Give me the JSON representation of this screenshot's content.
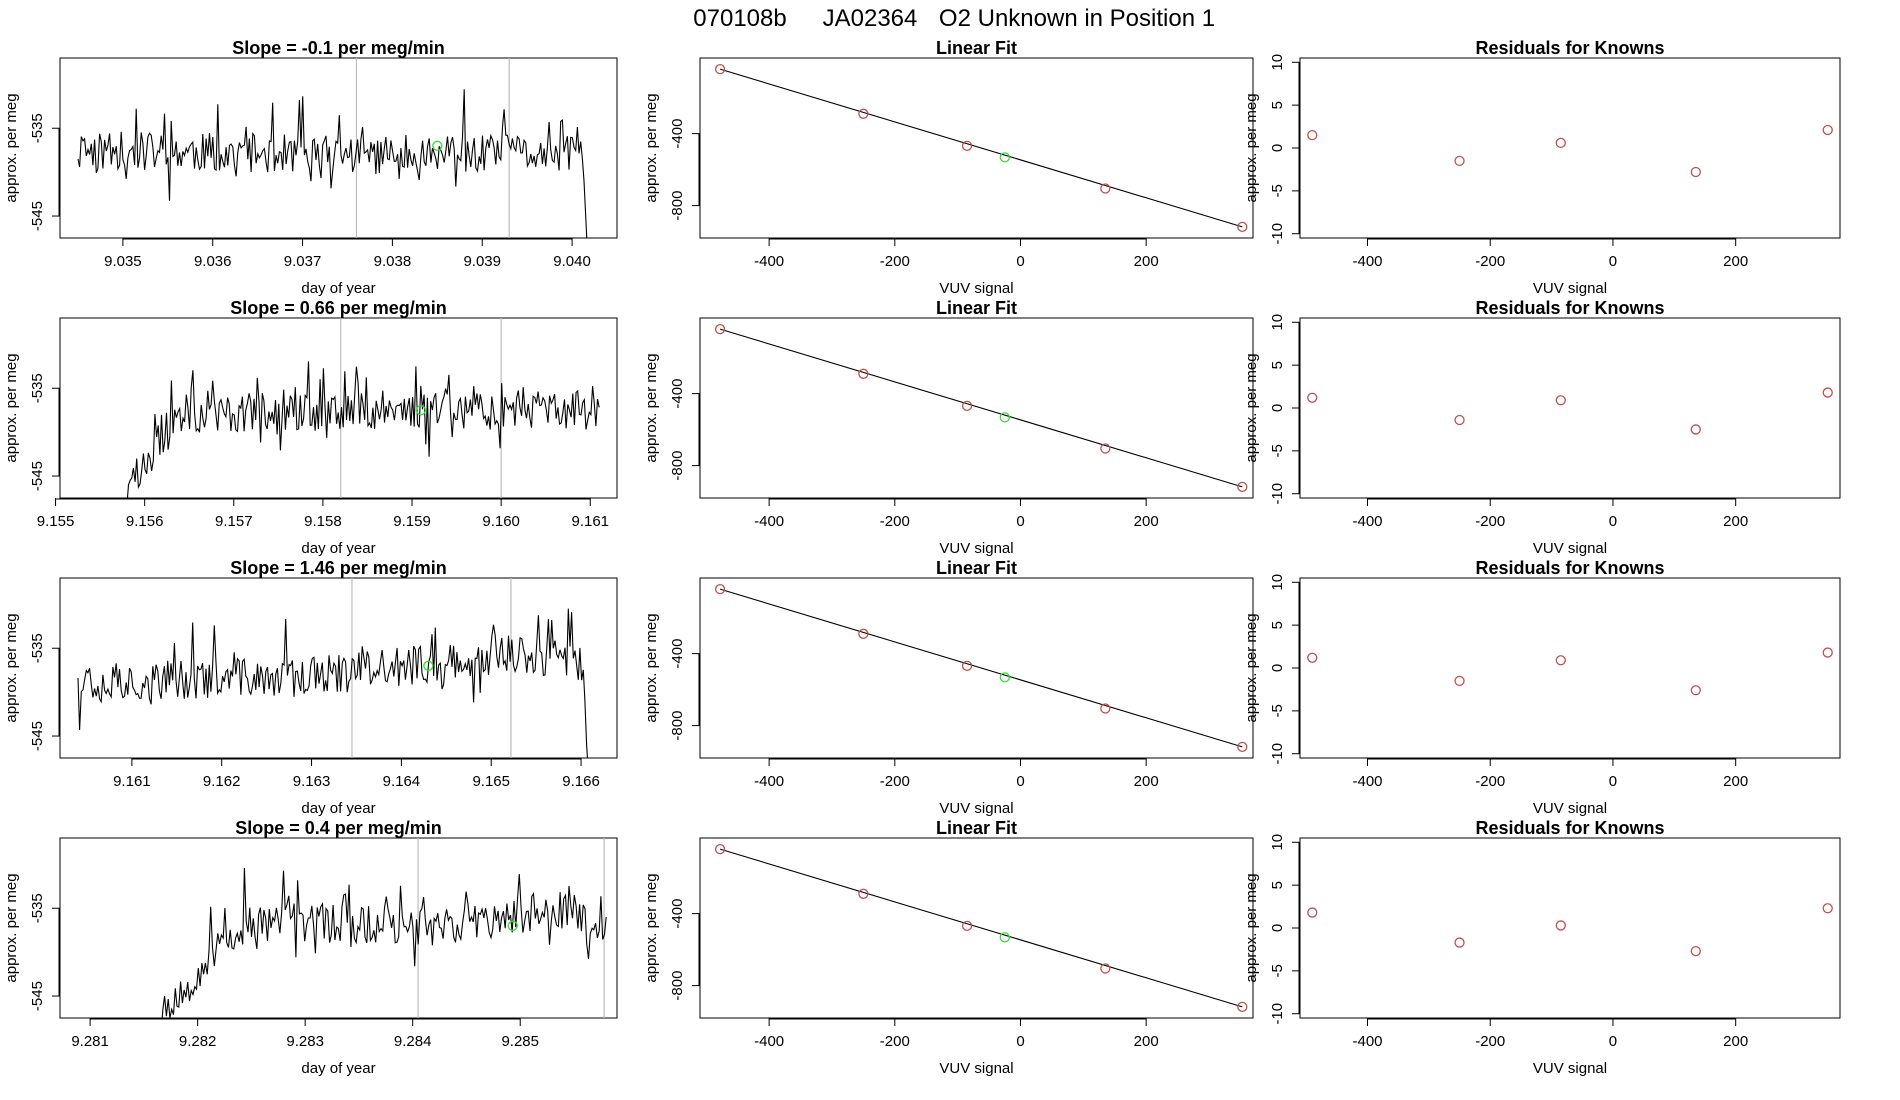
{
  "figure": {
    "title_run": "070108b",
    "title_id": "JA02364",
    "title_desc": "O2 Unknown in Position  1"
  },
  "colors": {
    "trace": "#000000",
    "frame": "#000000",
    "vline": "#bdbdbd",
    "known_point": "#c0504d",
    "unknown_point": "#33dd33"
  },
  "chart_data": [
    {
      "type": "line",
      "row": 1,
      "col": "time",
      "title": "Slope =  -0.1  per meg/min",
      "xlabel": "day of year",
      "ylabel": "approx. per meg",
      "xlim": [
        9.0343,
        9.0405
      ],
      "ylim": [
        -547.5,
        -527
      ],
      "xticks": [
        "9.035",
        "9.036",
        "9.037",
        "9.038",
        "9.039",
        "9.040"
      ],
      "yticks": [
        "-535",
        "-545"
      ],
      "vlines": [
        9.0376,
        9.0393
      ],
      "start_x": 9.0345,
      "end_x": 9.04017,
      "seed": 11,
      "levels": [
        [
          0,
          -537.5
        ],
        [
          0.5,
          -538
        ],
        [
          1,
          -538
        ]
      ],
      "tail": [
        -538.5,
        -541,
        -545,
        -549
      ],
      "green_point": [
        9.0385,
        -537
      ]
    },
    {
      "type": "line",
      "row": 1,
      "col": "fit",
      "title": "Linear Fit",
      "xlabel": "VUV signal",
      "ylabel": "approx. per meg",
      "xlim": [
        -510,
        370
      ],
      "ylim": [
        -980,
        20
      ],
      "xticks": [
        "-400",
        "-200",
        "0",
        "200"
      ],
      "yticks": [
        "-400",
        "-800"
      ],
      "fit_line": [
        [
          -478,
          -42
        ],
        [
          353,
          -918
        ]
      ],
      "points": [
        [
          -478,
          -42
        ],
        [
          -250,
          -290
        ],
        [
          -85,
          -468
        ],
        [
          -25,
          -532
        ],
        [
          135,
          -705
        ],
        [
          353,
          -918
        ]
      ],
      "unknown_index": 3
    },
    {
      "type": "scatter",
      "row": 1,
      "col": "residuals",
      "title": "Residuals for Knowns",
      "xlabel": "VUV signal",
      "ylabel": "approx. per meg",
      "xlim": [
        -510,
        370
      ],
      "ylim": [
        -10.5,
        10.5
      ],
      "xticks": [
        "-400",
        "-200",
        "0",
        "200"
      ],
      "yticks": [
        "-10",
        "-5",
        "0",
        "5",
        "10"
      ],
      "points": [
        [
          -490,
          1.5
        ],
        [
          -250,
          -1.5
        ],
        [
          -85,
          0.6
        ],
        [
          135,
          -2.8
        ],
        [
          350,
          2.1
        ]
      ]
    },
    {
      "type": "line",
      "row": 2,
      "col": "time",
      "title": "Slope =  0.66  per meg/min",
      "xlabel": "day of year",
      "ylabel": "approx. per meg",
      "xlim": [
        9.15505,
        9.1613
      ],
      "ylim": [
        -547.5,
        -527
      ],
      "xticks": [
        "9.155",
        "9.156",
        "9.157",
        "9.158",
        "9.159",
        "9.160",
        "9.161"
      ],
      "yticks": [
        "-535",
        "-545"
      ],
      "vlines": [
        9.1582,
        9.16
      ],
      "start_x": 9.1558,
      "end_x": 9.1611,
      "seed": 23,
      "levels": [
        [
          0,
          -547
        ],
        [
          0.05,
          -543
        ],
        [
          0.1,
          -538
        ],
        [
          0.5,
          -537.5
        ],
        [
          1,
          -537.5
        ]
      ],
      "head": [
        -548.5,
        -546,
        -545.5
      ],
      "green_point": [
        9.1591,
        -537.5
      ]
    },
    {
      "type": "line",
      "row": 2,
      "col": "fit",
      "title": "Linear Fit",
      "xlabel": "VUV signal",
      "ylabel": "approx. per meg",
      "xlim": [
        -510,
        370
      ],
      "ylim": [
        -980,
        20
      ],
      "xticks": [
        "-400",
        "-200",
        "0",
        "200"
      ],
      "yticks": [
        "-400",
        "-800"
      ],
      "fit_line": [
        [
          -478,
          -42
        ],
        [
          353,
          -918
        ]
      ],
      "points": [
        [
          -478,
          -42
        ],
        [
          -250,
          -290
        ],
        [
          -85,
          -468
        ],
        [
          -25,
          -532
        ],
        [
          135,
          -705
        ],
        [
          353,
          -918
        ]
      ],
      "unknown_index": 3
    },
    {
      "type": "scatter",
      "row": 2,
      "col": "residuals",
      "title": "Residuals for Knowns",
      "xlabel": "VUV signal",
      "ylabel": "approx. per meg",
      "xlim": [
        -510,
        370
      ],
      "ylim": [
        -10.5,
        10.5
      ],
      "xticks": [
        "-400",
        "-200",
        "0",
        "200"
      ],
      "yticks": [
        "-10",
        "-5",
        "0",
        "5",
        "10"
      ],
      "points": [
        [
          -490,
          1.2
        ],
        [
          -250,
          -1.4
        ],
        [
          -85,
          0.9
        ],
        [
          135,
          -2.5
        ],
        [
          350,
          1.8
        ]
      ]
    },
    {
      "type": "line",
      "row": 3,
      "col": "time",
      "title": "Slope =  1.46  per meg/min",
      "xlabel": "day of year",
      "ylabel": "approx. per meg",
      "xlim": [
        9.1602,
        9.1664
      ],
      "ylim": [
        -547.5,
        -527
      ],
      "xticks": [
        "9.161",
        "9.162",
        "9.163",
        "9.164",
        "9.165",
        "9.166"
      ],
      "yticks": [
        "-535",
        "-545"
      ],
      "vlines": [
        9.16345,
        9.16522
      ],
      "start_x": 9.1604,
      "end_x": 9.16608,
      "seed": 37,
      "levels": [
        [
          0,
          -539
        ],
        [
          0.5,
          -538
        ],
        [
          0.85,
          -535.5
        ],
        [
          1,
          -537
        ]
      ],
      "tail": [
        -541,
        -546,
        -549
      ],
      "green_point": [
        9.1643,
        -537
      ]
    },
    {
      "type": "line",
      "row": 3,
      "col": "fit",
      "title": "Linear Fit",
      "xlabel": "VUV signal",
      "ylabel": "approx. per meg",
      "xlim": [
        -510,
        370
      ],
      "ylim": [
        -980,
        20
      ],
      "xticks": [
        "-400",
        "-200",
        "0",
        "200"
      ],
      "yticks": [
        "-400",
        "-800"
      ],
      "fit_line": [
        [
          -478,
          -42
        ],
        [
          353,
          -918
        ]
      ],
      "points": [
        [
          -478,
          -42
        ],
        [
          -250,
          -290
        ],
        [
          -85,
          -468
        ],
        [
          -25,
          -532
        ],
        [
          135,
          -705
        ],
        [
          353,
          -918
        ]
      ],
      "unknown_index": 3
    },
    {
      "type": "scatter",
      "row": 3,
      "col": "residuals",
      "title": "Residuals for Knowns",
      "xlabel": "VUV signal",
      "ylabel": "approx. per meg",
      "xlim": [
        -510,
        370
      ],
      "ylim": [
        -10.5,
        10.5
      ],
      "xticks": [
        "-400",
        "-200",
        "0",
        "200"
      ],
      "yticks": [
        "-10",
        "-5",
        "0",
        "5",
        "10"
      ],
      "points": [
        [
          -490,
          1.2
        ],
        [
          -250,
          -1.5
        ],
        [
          -85,
          0.9
        ],
        [
          135,
          -2.6
        ],
        [
          350,
          1.8
        ]
      ]
    },
    {
      "type": "line",
      "row": 4,
      "col": "time",
      "title": "Slope =  0.4  per meg/min",
      "xlabel": "day of year",
      "ylabel": "approx. per meg",
      "xlim": [
        9.28072,
        9.2859
      ],
      "ylim": [
        -547.5,
        -527
      ],
      "xticks": [
        "9.281",
        "9.282",
        "9.283",
        "9.284",
        "9.285"
      ],
      "yticks": [
        "-535",
        "-545"
      ],
      "vlines": [
        9.28405,
        9.28578
      ],
      "start_x": 9.28166,
      "end_x": 9.2858,
      "seed": 53,
      "levels": [
        [
          0,
          -548
        ],
        [
          0.1,
          -541
        ],
        [
          0.2,
          -536.5
        ],
        [
          0.6,
          -537
        ],
        [
          0.92,
          -535.5
        ],
        [
          1,
          -536.5
        ]
      ],
      "head": [
        -549,
        -546.5,
        -545
      ],
      "green_point": [
        9.28493,
        -537
      ]
    },
    {
      "type": "line",
      "row": 4,
      "col": "fit",
      "title": "Linear Fit",
      "xlabel": "VUV signal",
      "ylabel": "approx. per meg",
      "xlim": [
        -510,
        370
      ],
      "ylim": [
        -980,
        20
      ],
      "xticks": [
        "-400",
        "-200",
        "0",
        "200"
      ],
      "yticks": [
        "-400",
        "-800"
      ],
      "fit_line": [
        [
          -478,
          -42
        ],
        [
          353,
          -918
        ]
      ],
      "points": [
        [
          -478,
          -42
        ],
        [
          -250,
          -290
        ],
        [
          -85,
          -468
        ],
        [
          -25,
          -532
        ],
        [
          135,
          -705
        ],
        [
          353,
          -918
        ]
      ],
      "unknown_index": 3
    },
    {
      "type": "scatter",
      "row": 4,
      "col": "residuals",
      "title": "Residuals for Knowns",
      "xlabel": "VUV signal",
      "ylabel": "approx. per meg",
      "xlim": [
        -510,
        370
      ],
      "ylim": [
        -10.5,
        10.5
      ],
      "xticks": [
        "-400",
        "-200",
        "0",
        "200"
      ],
      "yticks": [
        "-10",
        "-5",
        "0",
        "5",
        "10"
      ],
      "points": [
        [
          -490,
          1.8
        ],
        [
          -250,
          -1.7
        ],
        [
          -85,
          0.3
        ],
        [
          135,
          -2.7
        ],
        [
          350,
          2.3
        ]
      ]
    }
  ]
}
